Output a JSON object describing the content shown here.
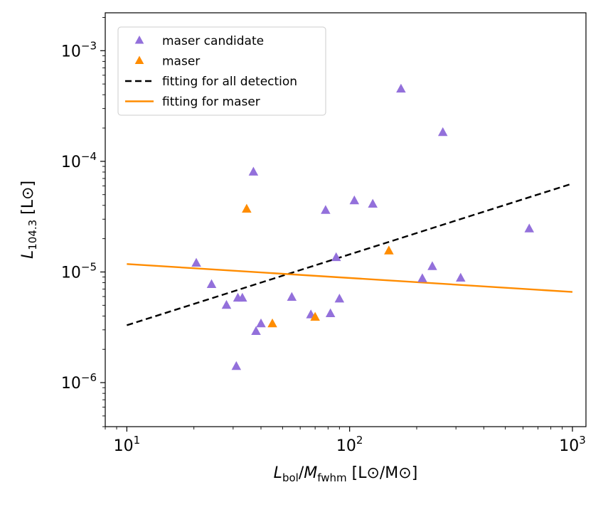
{
  "chart_data": {
    "type": "scatter",
    "x_scale": "log",
    "y_scale": "log",
    "xlim": [
      8,
      1150
    ],
    "ylim": [
      4e-07,
      0.0022
    ],
    "xlabel": {
      "main": "L",
      "sub": "bol",
      "mid": "/",
      "main2": "M",
      "sub2": "fwhm",
      "units": " [L⊙/M⊙]"
    },
    "ylabel": {
      "main": "L",
      "sub": "104.3",
      "units": " [L⊙]"
    },
    "x_ticks": [
      {
        "value": 10,
        "base": "10",
        "exp": "1"
      },
      {
        "value": 100,
        "base": "10",
        "exp": "2"
      },
      {
        "value": 1000,
        "base": "10",
        "exp": "3"
      }
    ],
    "y_ticks": [
      {
        "value": 1e-06,
        "base": "10",
        "exp": "−6"
      },
      {
        "value": 1e-05,
        "base": "10",
        "exp": "−5"
      },
      {
        "value": 0.0001,
        "base": "10",
        "exp": "−4"
      },
      {
        "value": 0.001,
        "base": "10",
        "exp": "−3"
      }
    ],
    "legend_position": "top-left",
    "series": [
      {
        "name": "maser candidate",
        "kind": "scatter",
        "marker": "triangle",
        "color": "#9370DB",
        "points": [
          [
            20.5,
            1.2e-05
          ],
          [
            24,
            7.7e-06
          ],
          [
            28,
            5e-06
          ],
          [
            31.5,
            5.8e-06
          ],
          [
            33,
            5.8e-06
          ],
          [
            31,
            1.4e-06
          ],
          [
            37,
            8e-05
          ],
          [
            38,
            2.9e-06
          ],
          [
            40,
            3.4e-06
          ],
          [
            55,
            5.9e-06
          ],
          [
            67,
            4.1e-06
          ],
          [
            78,
            3.6e-05
          ],
          [
            82,
            4.2e-06
          ],
          [
            87,
            1.35e-05
          ],
          [
            90,
            5.7e-06
          ],
          [
            105,
            4.4e-05
          ],
          [
            127,
            4.1e-05
          ],
          [
            170,
            0.00045
          ],
          [
            212,
            8.7e-06
          ],
          [
            235,
            1.12e-05
          ],
          [
            262,
            0.000182
          ],
          [
            315,
            8.8e-06
          ],
          [
            640,
            2.45e-05
          ]
        ]
      },
      {
        "name": "maser",
        "kind": "scatter",
        "marker": "triangle",
        "color": "#FF8C00",
        "points": [
          [
            34.5,
            3.7e-05
          ],
          [
            45,
            3.4e-06
          ],
          [
            70,
            3.9e-06
          ],
          [
            150,
            1.55e-05
          ]
        ]
      },
      {
        "name": "fitting for all detection",
        "kind": "line",
        "style": "dashed",
        "color": "#000000",
        "points": [
          [
            10,
            3.3e-06
          ],
          [
            1000,
            6.3e-05
          ]
        ]
      },
      {
        "name": "fitting for maser",
        "kind": "line",
        "style": "solid",
        "color": "#FF8C00",
        "points": [
          [
            10,
            1.18e-05
          ],
          [
            1000,
            6.6e-06
          ]
        ]
      }
    ]
  }
}
